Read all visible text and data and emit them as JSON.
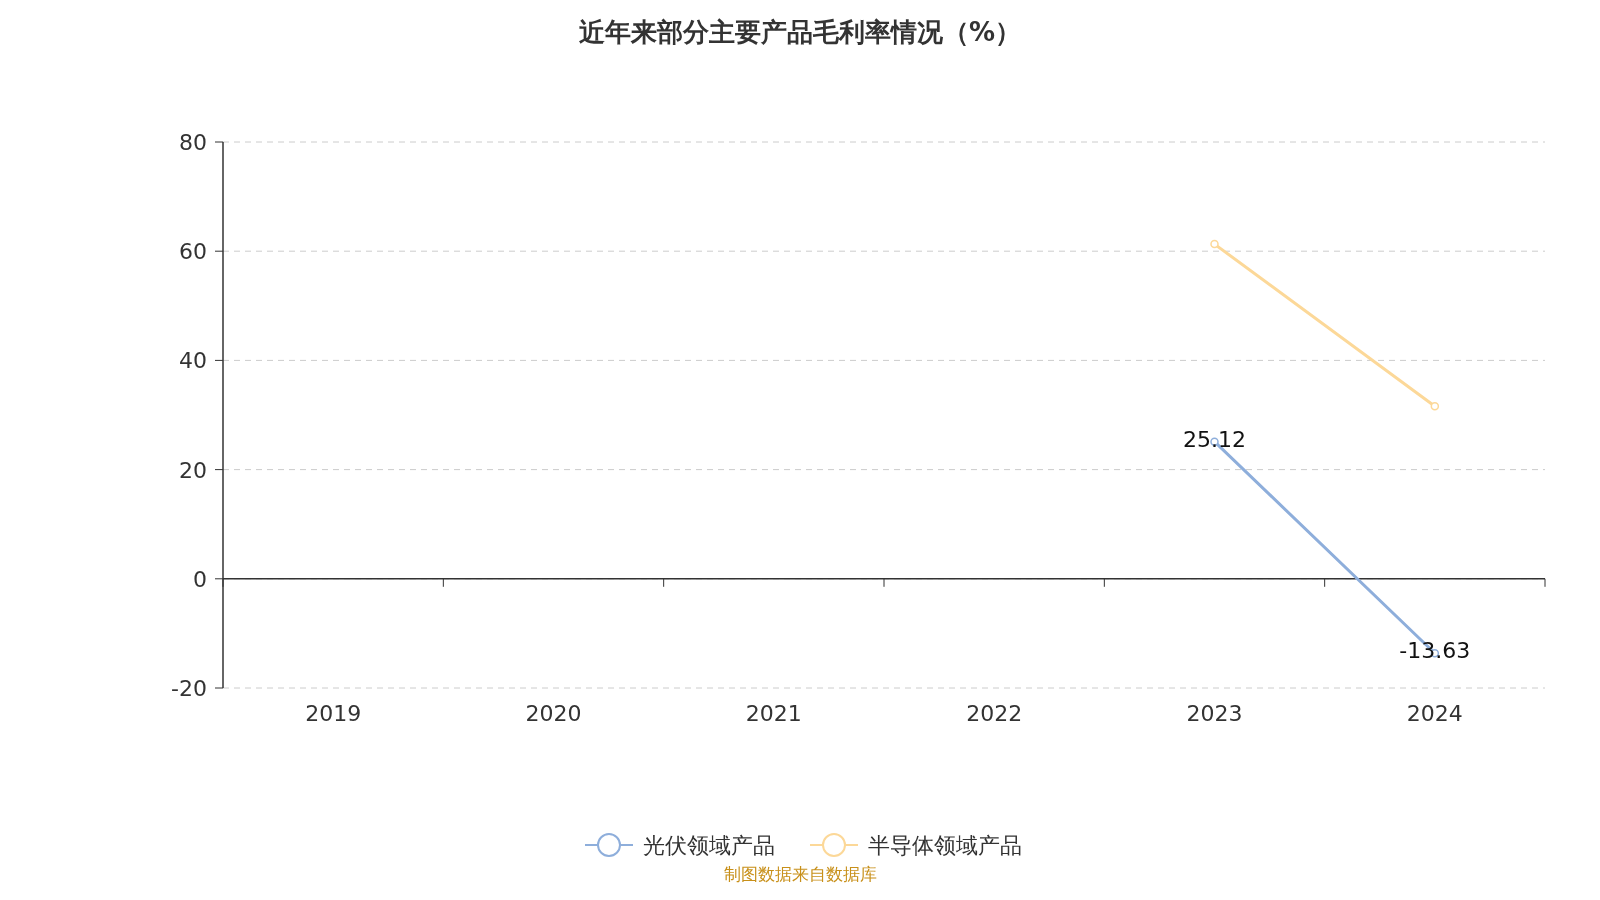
{
  "chart_data": {
    "type": "line",
    "title": "近年来部分主要产品毛利率情况（%）",
    "categories": [
      "2019",
      "2020",
      "2021",
      "2022",
      "2023",
      "2024"
    ],
    "series": [
      {
        "name": "光伏领域产品",
        "color": "#8eaedb",
        "values": [
          null,
          null,
          null,
          null,
          25.12,
          -13.63
        ],
        "value_labels": [
          null,
          null,
          null,
          null,
          "25.12",
          "-13.63"
        ]
      },
      {
        "name": "半导体领域产品",
        "color": "#fcd898",
        "values": [
          null,
          null,
          null,
          null,
          61.3,
          31.6
        ]
      }
    ],
    "ylim": [
      -20,
      80
    ],
    "yticks": [
      -20,
      0,
      20,
      40,
      60,
      80
    ],
    "grid": "y",
    "legend": "bottom",
    "marker": "circle",
    "annotations": [
      "制图数据来自数据库"
    ]
  }
}
